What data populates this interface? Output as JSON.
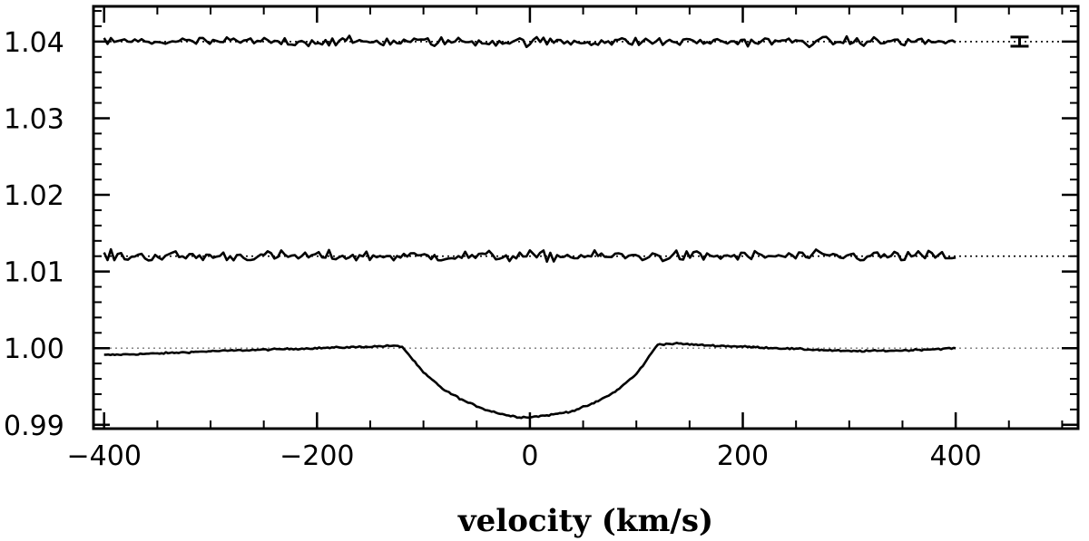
{
  "chart_data": {
    "type": "line",
    "title": "",
    "xlabel": "velocity (km/s)",
    "ylabel": "",
    "xlim": [
      -410,
      515
    ],
    "ylim": [
      0.9895,
      1.0446
    ],
    "x_ticks": [
      -400,
      -200,
      0,
      200,
      400
    ],
    "x_tick_labels": [
      "−400",
      "−200",
      "0",
      "200",
      "400"
    ],
    "y_ticks": [
      0.99,
      1.0,
      1.01,
      1.02,
      1.03,
      1.04
    ],
    "y_tick_labels": [
      "0.99",
      "1.00",
      "1.01",
      "1.02",
      "1.03",
      "1.04"
    ],
    "grid": false,
    "legend": "none",
    "reference_lines": [
      1.0,
      1.012,
      1.04
    ],
    "series": [
      {
        "role": "mean profile",
        "points": [
          [
            -400,
            0.9991
          ],
          [
            -350,
            0.9993
          ],
          [
            -300,
            0.9996
          ],
          [
            -250,
            0.9998
          ],
          [
            -200,
            1.0
          ],
          [
            -150,
            1.0002
          ],
          [
            -130,
            1.0003
          ],
          [
            -120,
            1.0002
          ],
          [
            -110,
            0.9985
          ],
          [
            -100,
            0.9968
          ],
          [
            -80,
            0.9945
          ],
          [
            -60,
            0.993
          ],
          [
            -40,
            0.9919
          ],
          [
            -20,
            0.9912
          ],
          [
            -10,
            0.991
          ],
          [
            0,
            0.991
          ],
          [
            20,
            0.9913
          ],
          [
            40,
            0.9918
          ],
          [
            60,
            0.9928
          ],
          [
            80,
            0.9943
          ],
          [
            100,
            0.9966
          ],
          [
            110,
            0.9985
          ],
          [
            120,
            1.0005
          ],
          [
            140,
            1.0006
          ],
          [
            160,
            1.0004
          ],
          [
            200,
            1.0002
          ],
          [
            250,
            0.9999
          ],
          [
            300,
            0.9996
          ],
          [
            350,
            0.9997
          ],
          [
            400,
            1.0
          ]
        ],
        "noise_amplitude": 0.0001,
        "color": "#000000"
      },
      {
        "role": "offset noise trace",
        "baseline": 1.012,
        "x_range": [
          -400,
          400
        ],
        "noise_amplitude": 0.0007,
        "color": "#000000"
      },
      {
        "role": "offset noise trace",
        "baseline": 1.04,
        "x_range": [
          -400,
          400
        ],
        "noise_amplitude": 0.0006,
        "color": "#000000"
      }
    ],
    "error_bar": {
      "x": 460,
      "y": 1.04,
      "half_height": 0.0006
    }
  }
}
